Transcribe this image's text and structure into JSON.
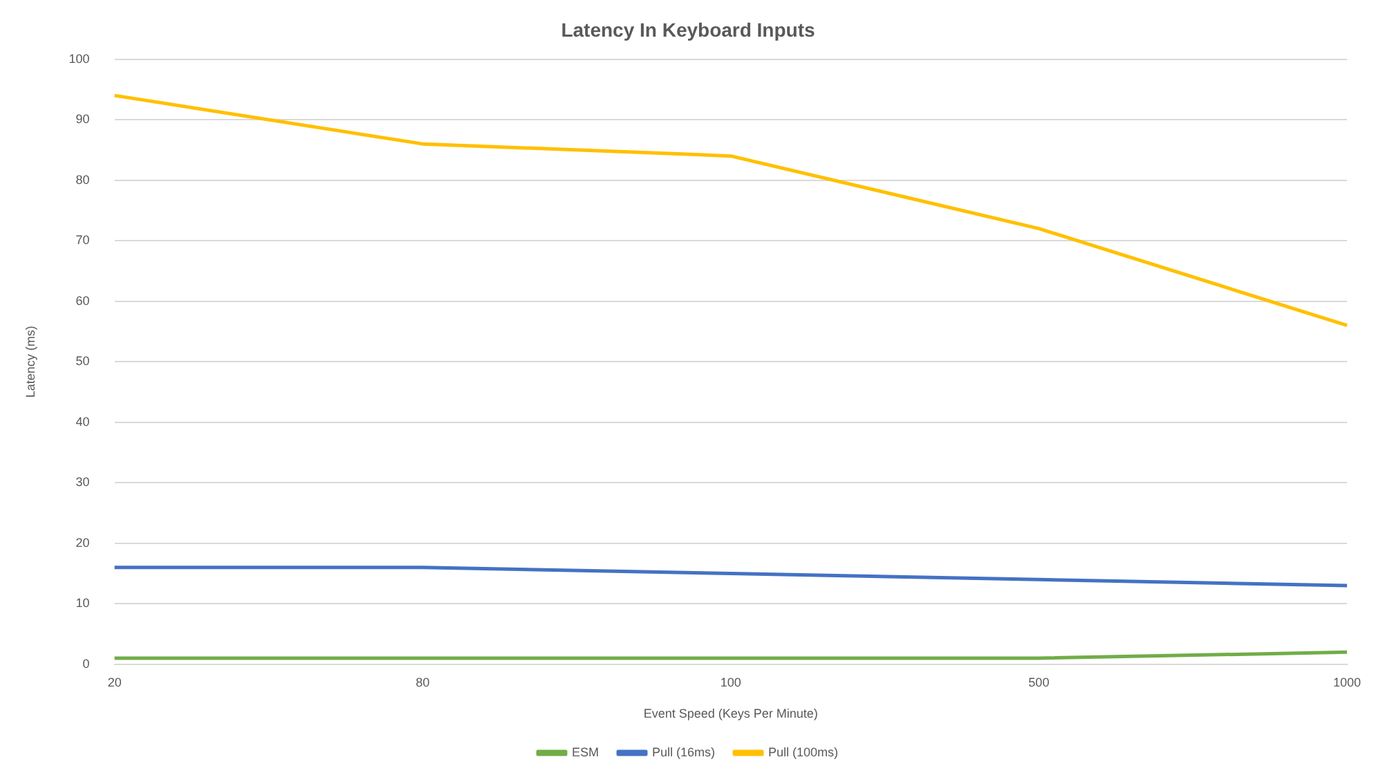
{
  "chart_data": {
    "type": "line",
    "title": "Latency In Keyboard Inputs",
    "xlabel": "Event Speed (Keys Per Minute)",
    "ylabel": "Latency (ms)",
    "categories": [
      "20",
      "80",
      "100",
      "500",
      "1000"
    ],
    "series": [
      {
        "name": "ESM",
        "color": "#70ad47",
        "values": [
          1,
          1,
          1,
          1,
          2
        ]
      },
      {
        "name": "Pull (16ms)",
        "color": "#4472c4",
        "values": [
          16,
          16,
          15,
          14,
          13
        ]
      },
      {
        "name": "Pull (100ms)",
        "color": "#ffc000",
        "values": [
          94,
          86,
          84,
          72,
          56
        ]
      }
    ],
    "ylim": [
      0,
      100
    ],
    "yticks": [
      0,
      10,
      20,
      30,
      40,
      50,
      60,
      70,
      80,
      90,
      100
    ],
    "grid": "y",
    "legend": "bottom",
    "marker": "none",
    "line_style": "solid"
  }
}
